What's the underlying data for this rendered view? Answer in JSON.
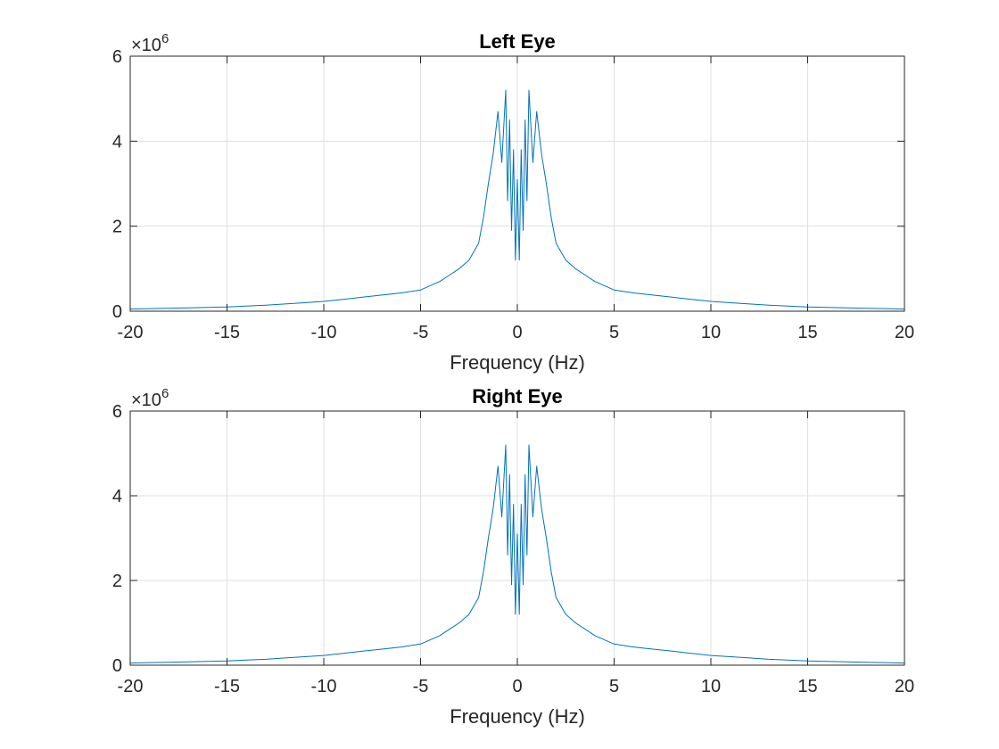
{
  "chart_data": [
    {
      "type": "line",
      "title": "Left Eye",
      "xlabel": "Frequency (Hz)",
      "ylabel": "",
      "xlim": [
        -20,
        20
      ],
      "ylim": [
        0,
        6000000
      ],
      "xticks": [
        -20,
        -15,
        -10,
        -5,
        0,
        5,
        10,
        15,
        20
      ],
      "xtick_labels": [
        "-20",
        "-15",
        "-10",
        "-5",
        "0",
        "5",
        "10",
        "15",
        "20"
      ],
      "yticks": [
        0,
        2000000,
        4000000,
        6000000
      ],
      "ytick_labels": [
        "0",
        "2",
        "4",
        "6"
      ],
      "y_exponent_label": "×10",
      "y_exponent": "6",
      "grid": true,
      "line_color": "#0072BD",
      "series": [
        {
          "x": [
            -20,
            -19,
            -18,
            -17,
            -16,
            -15,
            -14,
            -13,
            -12,
            -11,
            -10,
            -9,
            -8,
            -7,
            -6,
            -5,
            -4,
            -3.5,
            -3,
            -2.5,
            -2,
            -1.75,
            -1.5,
            -1.25,
            -1,
            -0.8,
            -0.6,
            -0.5,
            -0.4,
            -0.3,
            -0.2,
            -0.1,
            0,
            0.1,
            0.2,
            0.3,
            0.4,
            0.5,
            0.6,
            0.8,
            1,
            1.25,
            1.5,
            1.75,
            2,
            2.5,
            3,
            3.5,
            4,
            5,
            6,
            7,
            8,
            9,
            10,
            11,
            12,
            13,
            14,
            15,
            16,
            17,
            18,
            19,
            20
          ],
          "values": [
            50000,
            60000,
            70000,
            80000,
            90000,
            100000,
            120000,
            140000,
            170000,
            200000,
            230000,
            280000,
            330000,
            380000,
            430000,
            500000,
            700000,
            850000,
            1000000,
            1200000,
            1600000,
            2200000,
            3000000,
            3700000,
            4700000,
            3500000,
            5200000,
            2600000,
            4500000,
            1900000,
            3800000,
            1200000,
            3100000,
            1200000,
            3800000,
            1900000,
            4500000,
            2600000,
            5200000,
            3500000,
            4700000,
            3700000,
            3000000,
            2200000,
            1600000,
            1200000,
            1000000,
            850000,
            700000,
            500000,
            430000,
            380000,
            330000,
            280000,
            230000,
            200000,
            170000,
            140000,
            120000,
            100000,
            90000,
            80000,
            70000,
            60000,
            50000
          ]
        }
      ]
    },
    {
      "type": "line",
      "title": "Right Eye",
      "xlabel": "Frequency (Hz)",
      "ylabel": "",
      "xlim": [
        -20,
        20
      ],
      "ylim": [
        0,
        6000000
      ],
      "xticks": [
        -20,
        -15,
        -10,
        -5,
        0,
        5,
        10,
        15,
        20
      ],
      "xtick_labels": [
        "-20",
        "-15",
        "-10",
        "-5",
        "0",
        "5",
        "10",
        "15",
        "20"
      ],
      "yticks": [
        0,
        2000000,
        4000000,
        6000000
      ],
      "ytick_labels": [
        "0",
        "2",
        "4",
        "6"
      ],
      "y_exponent_label": "×10",
      "y_exponent": "6",
      "grid": true,
      "line_color": "#0072BD",
      "series": [
        {
          "x": [
            -20,
            -19,
            -18,
            -17,
            -16,
            -15,
            -14,
            -13,
            -12,
            -11,
            -10,
            -9,
            -8,
            -7,
            -6,
            -5,
            -4,
            -3.5,
            -3,
            -2.5,
            -2,
            -1.75,
            -1.5,
            -1.25,
            -1,
            -0.8,
            -0.6,
            -0.5,
            -0.4,
            -0.3,
            -0.2,
            -0.1,
            0,
            0.1,
            0.2,
            0.3,
            0.4,
            0.5,
            0.6,
            0.8,
            1,
            1.25,
            1.5,
            1.75,
            2,
            2.5,
            3,
            3.5,
            4,
            5,
            6,
            7,
            8,
            9,
            10,
            11,
            12,
            13,
            14,
            15,
            16,
            17,
            18,
            19,
            20
          ],
          "values": [
            50000,
            60000,
            70000,
            80000,
            90000,
            100000,
            120000,
            140000,
            170000,
            200000,
            230000,
            280000,
            330000,
            380000,
            430000,
            500000,
            700000,
            850000,
            1000000,
            1200000,
            1600000,
            2200000,
            3000000,
            3700000,
            4700000,
            3500000,
            5200000,
            2600000,
            4500000,
            1900000,
            3800000,
            1200000,
            3100000,
            1200000,
            3800000,
            1900000,
            4500000,
            2600000,
            5200000,
            3500000,
            4700000,
            3700000,
            3000000,
            2200000,
            1600000,
            1200000,
            1000000,
            850000,
            700000,
            500000,
            430000,
            380000,
            330000,
            280000,
            230000,
            200000,
            170000,
            140000,
            120000,
            100000,
            90000,
            80000,
            70000,
            60000,
            50000
          ]
        }
      ]
    }
  ]
}
